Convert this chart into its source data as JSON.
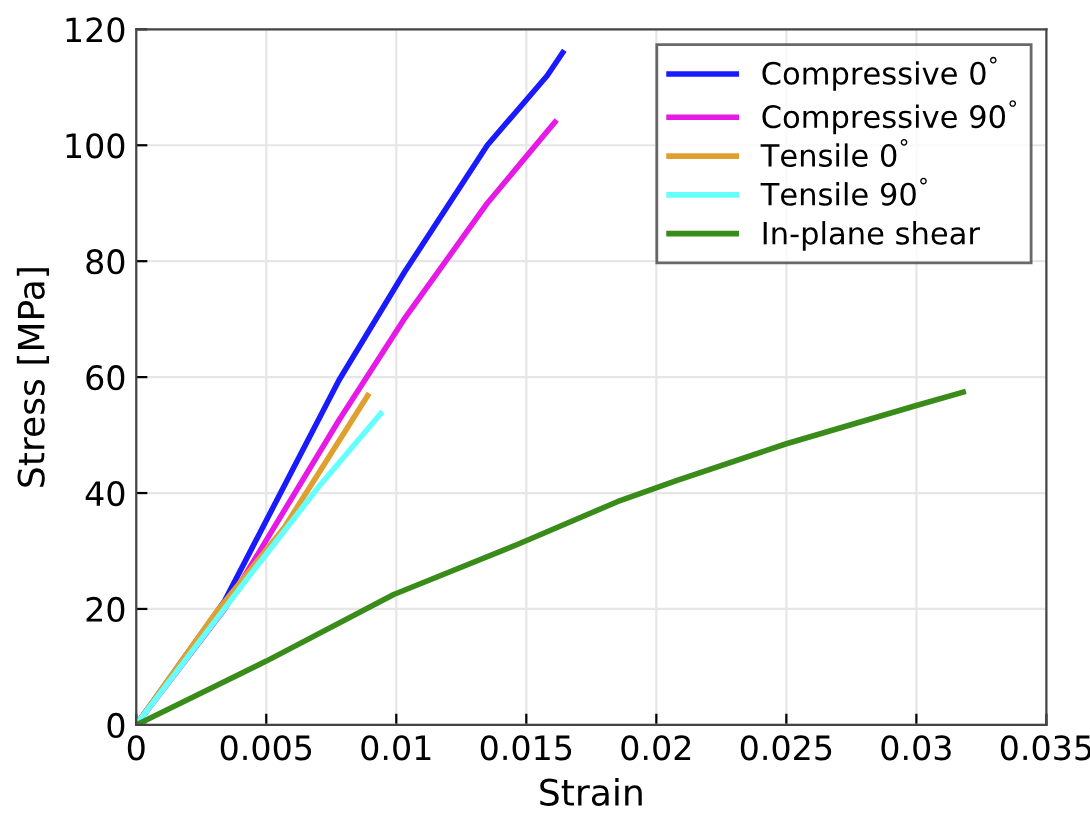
{
  "chart_data": {
    "type": "line",
    "xlabel": "Strain",
    "ylabel": "Stress [MPa]",
    "xlim": [
      0,
      0.035
    ],
    "xticks": [
      0,
      0.005,
      0.01,
      0.015,
      0.02,
      0.025,
      0.03,
      0.035
    ],
    "ylim": [
      0,
      120
    ],
    "yticks": [
      0,
      20,
      40,
      60,
      80,
      100,
      120
    ],
    "grid": true,
    "legend": "top right",
    "line_style": "solid",
    "series": [
      {
        "name": "Compressive 0$^{°}$",
        "color": "#1a1aff",
        "x": [
          0,
          0.0034,
          0.0078,
          0.0103,
          0.0135,
          0.0158,
          0.0164
        ],
        "values": [
          0,
          21.4,
          59.5,
          78,
          100,
          112,
          116
        ]
      },
      {
        "name": "Compressive 90$^{°}$",
        "color": "#e619e6",
        "x": [
          0,
          0.0034,
          0.0078,
          0.0103,
          0.0135,
          0.0161
        ],
        "values": [
          0,
          20,
          52.6,
          70,
          90,
          104
        ]
      },
      {
        "name": "Tensile 0$^{°}$",
        "color": "#e0a030",
        "x": [
          0,
          0.003,
          0.0057,
          0.0089
        ],
        "values": [
          0,
          19,
          34.1,
          56.8
        ]
      },
      {
        "name": "Tensile 90$^{°}$",
        "color": "#66ffff",
        "x": [
          0,
          0.0044,
          0.007,
          0.0094
        ],
        "values": [
          0,
          26,
          41,
          53.7
        ]
      },
      {
        "name": "In-plane shear",
        "color": "#3a8c1a",
        "x": [
          0,
          0.005,
          0.0099,
          0.0147,
          0.0185,
          0.0208,
          0.025,
          0.03,
          0.0318
        ],
        "values": [
          0,
          11,
          22.5,
          31.2,
          38.5,
          42.2,
          48.5,
          55.1,
          57.4
        ]
      }
    ]
  }
}
